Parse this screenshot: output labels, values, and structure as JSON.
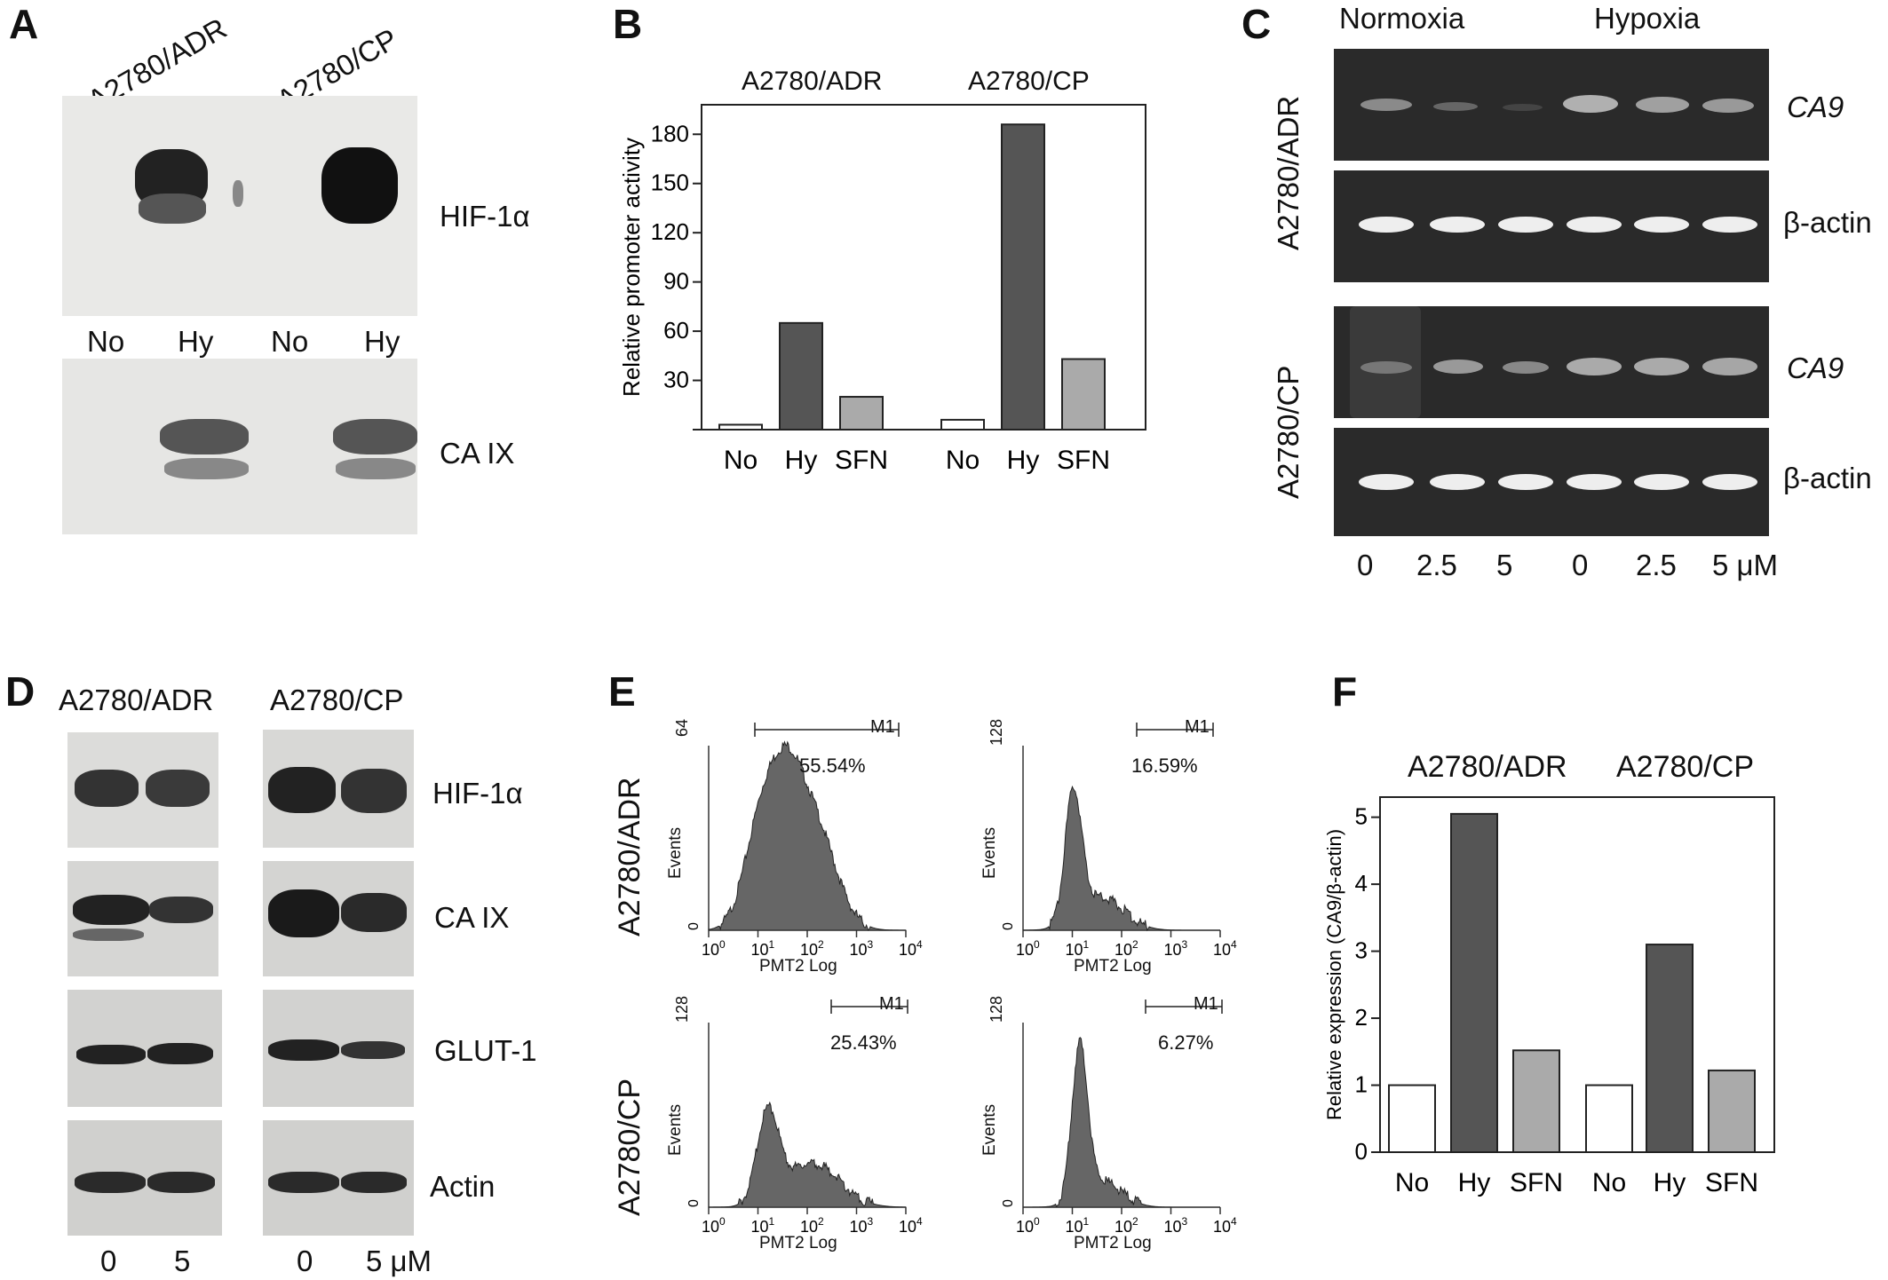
{
  "panels": {
    "A": {
      "letter": "A",
      "cell_lines": [
        "A2780/ADR",
        "A2780/CP"
      ],
      "lanes": [
        "No",
        "Hy",
        "No",
        "Hy"
      ],
      "proteins": [
        "HIF-1α",
        "CA IX"
      ]
    },
    "B": {
      "letter": "B",
      "group_labels": [
        "A2780/ADR",
        "A2780/CP"
      ]
    },
    "C": {
      "letter": "C",
      "conditions": [
        "Normoxia",
        "Hypoxia"
      ],
      "cell_lines": [
        "A2780/ADR",
        "A2780/CP"
      ],
      "genes": [
        "CA9",
        "β-actin",
        "CA9",
        "β-actin"
      ],
      "doses": [
        "0",
        "2.5",
        "5",
        "0",
        "2.5",
        "5 μM"
      ]
    },
    "D": {
      "letter": "D",
      "cell_lines": [
        "A2780/ADR",
        "A2780/CP"
      ],
      "proteins": [
        "HIF-1α",
        "CA IX",
        "GLUT-1",
        "Actin"
      ],
      "doses": [
        "0",
        "5",
        "0",
        "5 μM"
      ]
    },
    "E": {
      "letter": "E",
      "row_labels": [
        "A2780/ADR",
        "A2780/CP"
      ],
      "histograms": [
        {
          "ymax": "64",
          "gate": "M1",
          "percent": "55.54%"
        },
        {
          "ymax": "128",
          "gate": "M1",
          "percent": "16.59%"
        },
        {
          "ymax": "128",
          "gate": "M1",
          "percent": "25.43%"
        },
        {
          "ymax": "128",
          "gate": "M1",
          "percent": "6.27%"
        }
      ],
      "xlabel": "PMT2 Log",
      "ylabel": "Events"
    },
    "F": {
      "letter": "F",
      "group_labels": [
        "A2780/ADR",
        "A2780/CP"
      ]
    }
  },
  "chart_data": [
    {
      "type": "bar",
      "panel": "B",
      "categories": [
        "No",
        "Hy",
        "SFN",
        "No",
        "Hy",
        "SFN"
      ],
      "groups": [
        "A2780/ADR",
        "A2780/CP"
      ],
      "values": [
        3,
        65,
        20,
        6,
        186,
        43
      ],
      "ylabel": "Relative promoter activity",
      "yticks": [
        30,
        60,
        90,
        120,
        150,
        180
      ],
      "ylim": [
        0,
        198
      ],
      "colors": [
        "#ffffff",
        "#555555",
        "#aaaaaa",
        "#ffffff",
        "#555555",
        "#aaaaaa"
      ]
    },
    {
      "type": "bar",
      "panel": "F",
      "categories": [
        "No",
        "Hy",
        "SFN",
        "No",
        "Hy",
        "SFN"
      ],
      "groups": [
        "A2780/ADR",
        "A2780/CP"
      ],
      "values": [
        1.0,
        5.05,
        1.52,
        1.0,
        3.1,
        1.22
      ],
      "ylabel": "Relative expression (CA9/β-actin)",
      "yticks": [
        0,
        1,
        2,
        3,
        4,
        5
      ],
      "ylim": [
        0,
        5.3
      ],
      "colors": [
        "#ffffff",
        "#555555",
        "#aaaaaa",
        "#ffffff",
        "#555555",
        "#aaaaaa"
      ]
    }
  ]
}
